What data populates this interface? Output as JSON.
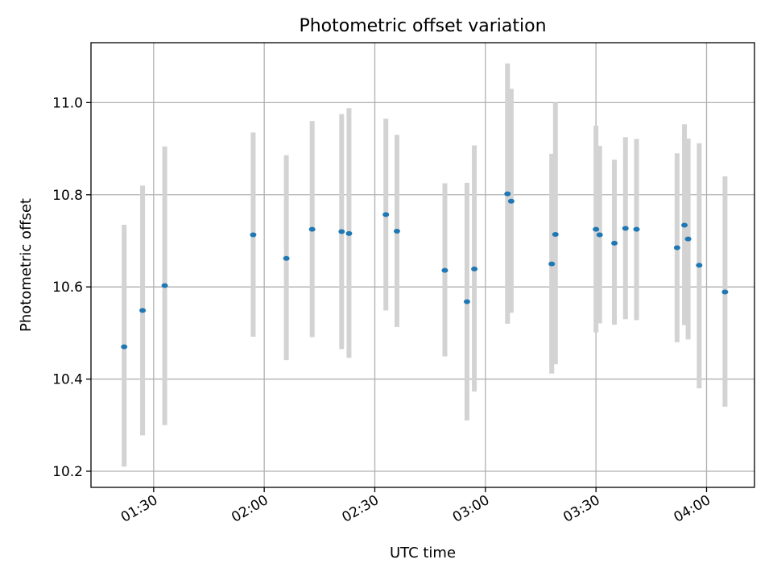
{
  "chart_data": {
    "type": "scatter",
    "title": "Photometric offset variation",
    "xlabel": "UTC time",
    "ylabel": "Photometric offset",
    "xlim": [
      "01:13",
      "04:13"
    ],
    "ylim": [
      10.165,
      11.13
    ],
    "x_ticks": [
      "01:30",
      "02:00",
      "02:30",
      "03:00",
      "03:30",
      "04:00"
    ],
    "y_ticks": [
      "10.2",
      "10.4",
      "10.6",
      "10.8",
      "11.0"
    ],
    "grid": true,
    "colors": {
      "point": "#1f77b4",
      "errorbar": "#d3d3d3",
      "grid": "#b0b0b0"
    },
    "points": [
      {
        "x": "01:22",
        "y": 10.47,
        "lo": 10.21,
        "hi": 10.735
      },
      {
        "x": "01:27",
        "y": 10.549,
        "lo": 10.278,
        "hi": 10.82
      },
      {
        "x": "01:33",
        "y": 10.603,
        "lo": 10.3,
        "hi": 10.905
      },
      {
        "x": "01:57",
        "y": 10.713,
        "lo": 10.492,
        "hi": 10.935
      },
      {
        "x": "02:06",
        "y": 10.662,
        "lo": 10.441,
        "hi": 10.886
      },
      {
        "x": "02:13",
        "y": 10.725,
        "lo": 10.491,
        "hi": 10.96
      },
      {
        "x": "02:21",
        "y": 10.72,
        "lo": 10.465,
        "hi": 10.975
      },
      {
        "x": "02:23",
        "y": 10.716,
        "lo": 10.446,
        "hi": 10.988
      },
      {
        "x": "02:33",
        "y": 10.757,
        "lo": 10.549,
        "hi": 10.965
      },
      {
        "x": "02:36",
        "y": 10.721,
        "lo": 10.513,
        "hi": 10.93
      },
      {
        "x": "02:49",
        "y": 10.636,
        "lo": 10.449,
        "hi": 10.825
      },
      {
        "x": "02:55",
        "y": 10.568,
        "lo": 10.31,
        "hi": 10.826
      },
      {
        "x": "02:57",
        "y": 10.639,
        "lo": 10.373,
        "hi": 10.907
      },
      {
        "x": "03:06",
        "y": 10.802,
        "lo": 10.52,
        "hi": 11.085
      },
      {
        "x": "03:07",
        "y": 10.786,
        "lo": 10.544,
        "hi": 11.03
      },
      {
        "x": "03:18",
        "y": 10.65,
        "lo": 10.412,
        "hi": 10.889
      },
      {
        "x": "03:19",
        "y": 10.714,
        "lo": 10.432,
        "hi": 11.0
      },
      {
        "x": "03:30",
        "y": 10.725,
        "lo": 10.501,
        "hi": 10.95
      },
      {
        "x": "03:31",
        "y": 10.713,
        "lo": 10.521,
        "hi": 10.906
      },
      {
        "x": "03:35",
        "y": 10.695,
        "lo": 10.518,
        "hi": 10.876
      },
      {
        "x": "03:38",
        "y": 10.727,
        "lo": 10.53,
        "hi": 10.925
      },
      {
        "x": "03:41",
        "y": 10.725,
        "lo": 10.528,
        "hi": 10.921
      },
      {
        "x": "03:52",
        "y": 10.685,
        "lo": 10.48,
        "hi": 10.89
      },
      {
        "x": "03:54",
        "y": 10.734,
        "lo": 10.517,
        "hi": 10.953
      },
      {
        "x": "03:55",
        "y": 10.704,
        "lo": 10.486,
        "hi": 10.922
      },
      {
        "x": "03:58",
        "y": 10.647,
        "lo": 10.38,
        "hi": 10.912
      },
      {
        "x": "04:05",
        "y": 10.589,
        "lo": 10.34,
        "hi": 10.84
      }
    ]
  }
}
